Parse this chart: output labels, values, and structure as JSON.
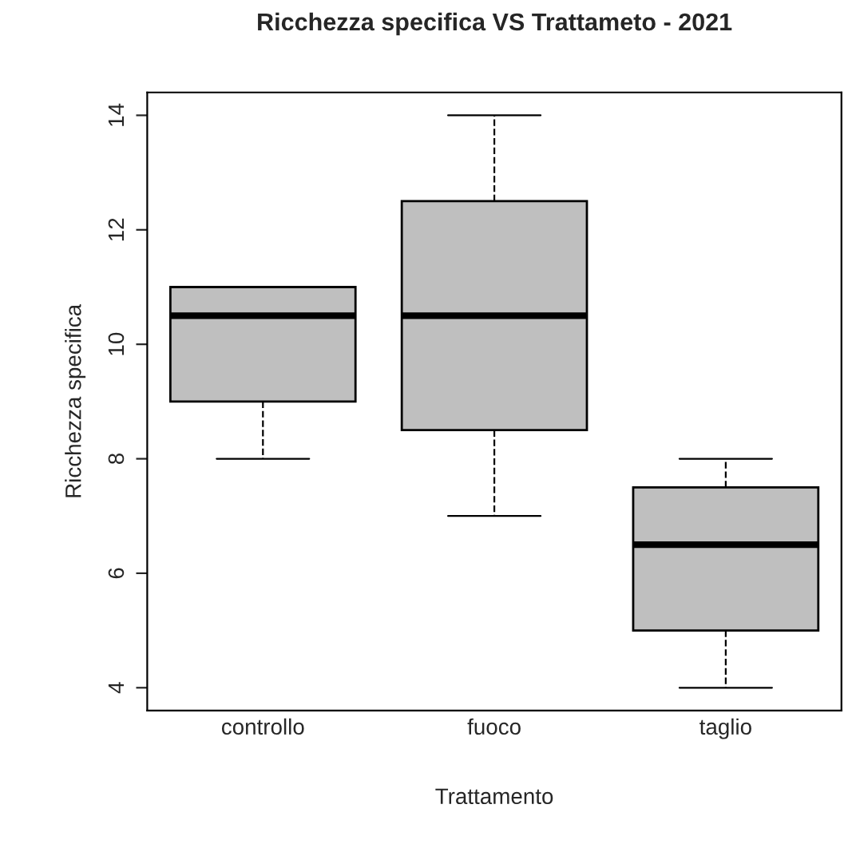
{
  "chart_data": {
    "type": "box",
    "title": "Ricchezza specifica VS Trattameto - 2021",
    "xlabel": "Trattamento",
    "ylabel": "Ricchezza specifica",
    "categories": [
      "controllo",
      "fuoco",
      "taglio"
    ],
    "boxes": [
      {
        "low": 8,
        "q1": 9,
        "median": 10.5,
        "q3": 11,
        "high": 11
      },
      {
        "low": 7,
        "q1": 8.5,
        "median": 10.5,
        "q3": 12.5,
        "high": 14
      },
      {
        "low": 4,
        "q1": 5,
        "median": 6.5,
        "q3": 7.5,
        "high": 8
      }
    ],
    "color": "#bfbfbf",
    "line_style": "dashed",
    "ylim": [
      3.6,
      14.4
    ],
    "yticks": [
      4,
      6,
      8,
      10,
      12,
      14
    ],
    "grid": false
  }
}
